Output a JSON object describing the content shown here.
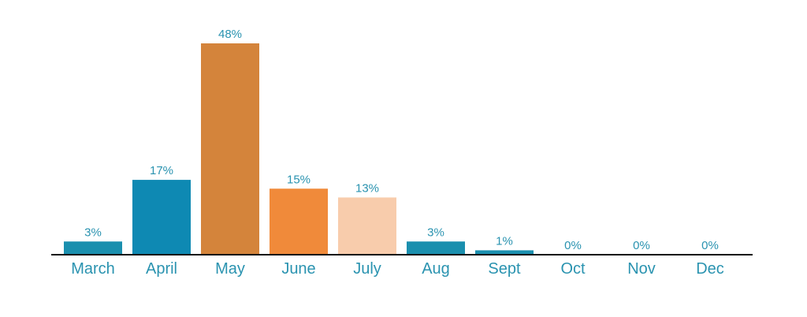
{
  "chart_data": {
    "type": "bar",
    "categories": [
      "March",
      "April",
      "May",
      "June",
      "July",
      "Aug",
      "Sept",
      "Oct",
      "Nov",
      "Dec"
    ],
    "values": [
      3,
      17,
      48,
      15,
      13,
      3,
      1,
      0,
      0,
      0
    ],
    "value_labels": [
      "3%",
      "17%",
      "48%",
      "15%",
      "13%",
      "3%",
      "1%",
      "0%",
      "0%",
      "0%"
    ],
    "bar_colors": [
      "#1a8fae",
      "#0e89b3",
      "#d4843b",
      "#f08a3a",
      "#f8ccac",
      "#1a8fae",
      "#1a8fae",
      "#1a8fae",
      "#1a8fae",
      "#1a8fae"
    ],
    "label_color": "#2a93b0",
    "axis_color": "#111111",
    "ylim": [
      0,
      48
    ],
    "title": "",
    "xlabel": "",
    "ylabel": "",
    "grid": false,
    "legend": "none"
  }
}
